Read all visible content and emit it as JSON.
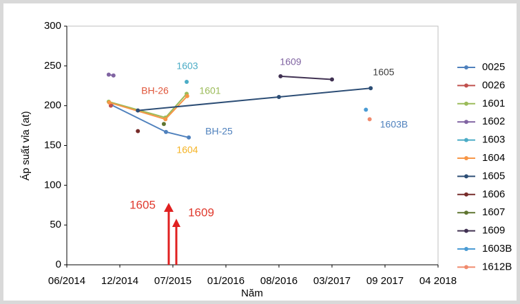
{
  "chart_data": {
    "type": "line",
    "ylabel": "Áp suất vỉa (at)",
    "xlabel": "Năm",
    "xlim": [
      0,
      7
    ],
    "xticks": [
      {
        "value": 0,
        "label": "06/2014"
      },
      {
        "value": 1,
        "label": "12/2014"
      },
      {
        "value": 2,
        "label": "07/2015"
      },
      {
        "value": 3,
        "label": "01/2016"
      },
      {
        "value": 4,
        "label": "08/2016"
      },
      {
        "value": 5,
        "label": "03/2017"
      },
      {
        "value": 6,
        "label": "09 2017"
      },
      {
        "value": 7,
        "label": "04 2018"
      }
    ],
    "ylim": [
      0,
      300
    ],
    "yticks": [
      0,
      50,
      100,
      150,
      200,
      250,
      300
    ],
    "grid": false,
    "legend": "right",
    "series": [
      {
        "name": "0025",
        "color": "#4f81bd",
        "x": [
          0.84,
          1.87,
          2.3
        ],
        "values": [
          201,
          167,
          160
        ]
      },
      {
        "name": "0026",
        "color": "#c0504d",
        "x": [
          0.83
        ],
        "values": [
          200
        ]
      },
      {
        "name": "1601",
        "color": "#9bbb59",
        "x": [
          0.79,
          1.86,
          2.26
        ],
        "values": [
          205,
          185,
          215
        ]
      },
      {
        "name": "1602",
        "color": "#8064a2",
        "x": [
          0.79,
          0.88
        ],
        "values": [
          239,
          238
        ]
      },
      {
        "name": "1603",
        "color": "#4bacc6",
        "x": [
          2.26
        ],
        "values": [
          230
        ]
      },
      {
        "name": "1604",
        "color": "#f79646",
        "x": [
          0.8,
          1.86,
          2.27
        ],
        "values": [
          204,
          183,
          212
        ]
      },
      {
        "name": "1605",
        "color": "#2c4d75",
        "x": [
          1.34,
          4.0,
          5.73
        ],
        "values": [
          194,
          211,
          222
        ]
      },
      {
        "name": "1606",
        "color": "#772c2a",
        "x": [
          1.34
        ],
        "values": [
          168
        ]
      },
      {
        "name": "1607",
        "color": "#5f7530",
        "x": [
          1.83
        ],
        "values": [
          177
        ]
      },
      {
        "name": "1609",
        "color": "#403152",
        "x": [
          4.03,
          5.0
        ],
        "values": [
          237,
          233
        ]
      },
      {
        "name": "1603B",
        "color": "#4a9bd4",
        "x": [
          5.64
        ],
        "values": [
          195
        ]
      },
      {
        "name": "1612B",
        "color": "#f08a6d",
        "x": [
          5.71
        ],
        "values": [
          183
        ]
      }
    ],
    "annotations": [
      {
        "text": "1603",
        "color": "#4bacc6"
      },
      {
        "text": "BH-26",
        "color": "#e0553a"
      },
      {
        "text": "1601",
        "color": "#9bbb59"
      },
      {
        "text": "BH-25",
        "color": "#4f81bd"
      },
      {
        "text": "1604",
        "color": "#f5b324"
      },
      {
        "text": "1609",
        "color": "#8064a2"
      },
      {
        "text": "1605",
        "color": "#404040"
      },
      {
        "text": "1603B",
        "color": "#4f81bd"
      },
      {
        "text": "1605",
        "color": "#e03a2e"
      },
      {
        "text": "1609",
        "color": "#e03a2e"
      }
    ]
  }
}
